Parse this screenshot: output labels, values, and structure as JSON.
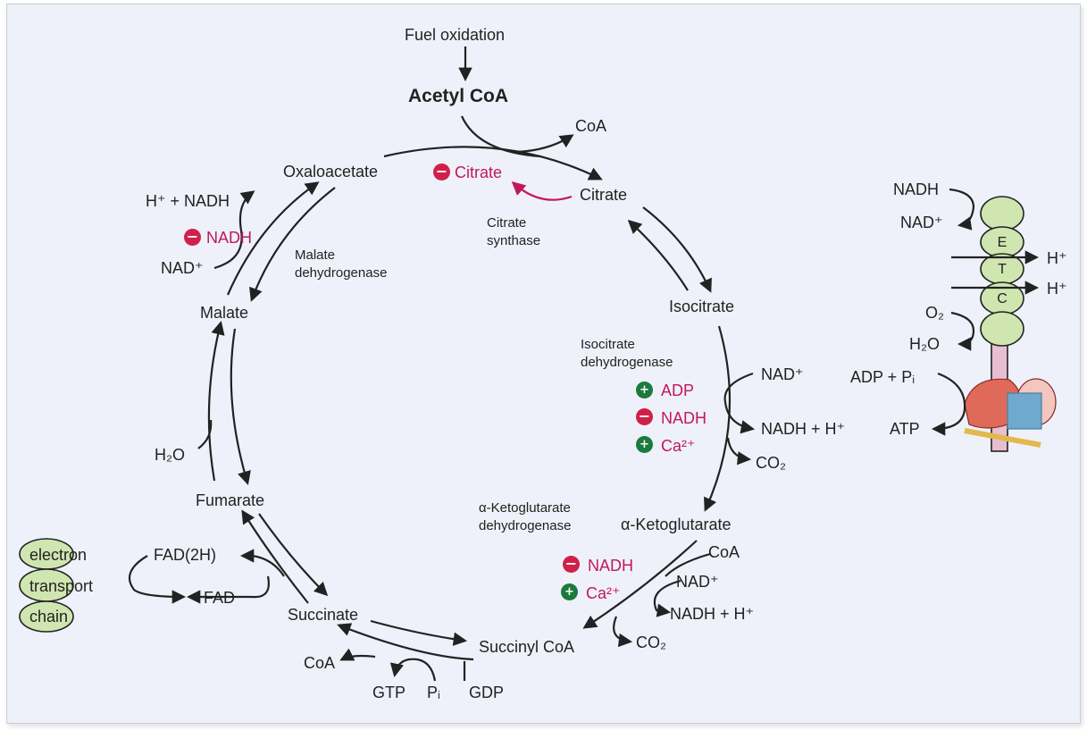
{
  "title": {
    "fuel_oxidation": "Fuel oxidation",
    "acetyl_coa": "Acetyl CoA"
  },
  "metabolites": {
    "oxaloacetate": "Oxaloacetate",
    "citrate": "Citrate",
    "isocitrate": "Isocitrate",
    "alpha_ketoglutarate": "α-Ketoglutarate",
    "succinyl_coa": "Succinyl CoA",
    "succinate": "Succinate",
    "fumarate": "Fumarate",
    "malate": "Malate"
  },
  "enzymes": {
    "citrate_synthase_1": "Citrate",
    "citrate_synthase_2": "synthase",
    "malate_dh_1": "Malate",
    "malate_dh_2": "dehydrogenase",
    "isocitrate_dh_1": "Isocitrate",
    "isocitrate_dh_2": "dehydrogenase",
    "akg_dh_1": "α-Ketoglutarate",
    "akg_dh_2": "dehydrogenase"
  },
  "side": {
    "coa_top": "CoA",
    "h_nadh": "H⁺ + NADH",
    "nad_malate": "NAD⁺",
    "h2o_fumarate": "H₂O",
    "fad2h": "FAD(2H)",
    "fad": "FAD",
    "nad_iso": "NAD⁺",
    "nadh_h_iso": "NADH + H⁺",
    "co2_iso": "CO₂",
    "coa_akg": "CoA",
    "nad_akg": "NAD⁺",
    "nadh_h_akg": "NADH + H⁺",
    "co2_akg": "CO₂",
    "coa_bottom": "CoA",
    "gtp": "GTP",
    "pi": "Pᵢ",
    "gdp": "GDP"
  },
  "regulators": {
    "citrate": "Citrate",
    "nadh_malate": "NADH",
    "adp": "ADP",
    "nadh_iso": "NADH",
    "ca_iso": "Ca²⁺",
    "nadh_akg": "NADH",
    "ca_akg": "Ca²⁺",
    "minus_sign": "−",
    "plus_sign": "+"
  },
  "etc": {
    "nadh": "NADH",
    "nad": "NAD⁺",
    "e": "E",
    "t": "T",
    "c": "C",
    "h_out_1": "H⁺",
    "h_out_2": "H⁺",
    "o2": "O₂",
    "h2o": "H₂O",
    "adp_pi": "ADP + Pᵢ",
    "atp": "ATP"
  },
  "left_etc": {
    "electron": "electron",
    "transport": "transport",
    "chain": "chain"
  },
  "colors": {
    "activator": "#1b7a3c",
    "inhibitor": "#d0204a",
    "regulator_text": "#c2185b",
    "complex": "#cfe6b0"
  }
}
